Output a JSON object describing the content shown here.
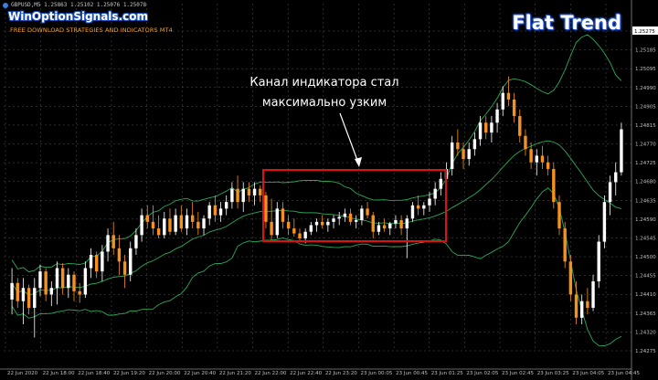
{
  "header": {
    "symbol_line": "GBPUSD,M5  1.25863 1.25102 1.25076 1.25078",
    "brand": "WinOptionSignals.com",
    "tagline": "FREE DOWNLOAD STRATEGIES AND INDICATORS MT4",
    "title": "Flat Trend"
  },
  "annotation": {
    "line1": "Канал индикатора стал",
    "line2": "максимально узким"
  },
  "colors": {
    "background": "#000000",
    "bull_candle": "#ffffff",
    "bear_candle": "#f5921e",
    "band": "#2aa85a",
    "grid": "#555555",
    "box": "#e01010",
    "axis_text": "#c0c0c0"
  },
  "chart_data": {
    "type": "candlestick",
    "title": "Flat Trend",
    "symbol": "GBPUSD,M5",
    "y_ticks": [
      "1.25275",
      "1.25185",
      "1.25095",
      "1.24990",
      "1.24905",
      "1.24815",
      "1.24770",
      "1.24725",
      "1.24680",
      "1.24635",
      "1.24590",
      "1.24545",
      "1.24500",
      "1.24455",
      "1.24410",
      "1.24365",
      "1.24320",
      "1.24275"
    ],
    "current_price_label": "1.25275",
    "x_ticks": [
      "22 Jun 2020",
      "22 Jun 18:00",
      "22 Jun 18:40",
      "22 Jun 19:20",
      "22 Jun 20:00",
      "22 Jun 20:40",
      "22 Jun 21:20",
      "22 Jun 22:00",
      "22 Jun 22:40",
      "22 Jun 23:20",
      "23 Jun 00:05",
      "23 Jun 00:45",
      "23 Jun 01:25",
      "23 Jun 02:05",
      "23 Jun 02:45",
      "23 Jun 03:25",
      "23 Jun 04:05",
      "23 Jun 04:45"
    ],
    "ohlc": [
      [
        1.24405,
        1.245,
        1.2436,
        1.24455
      ],
      [
        1.24455,
        1.2447,
        1.2438,
        1.244
      ],
      [
        1.244,
        1.2447,
        1.2433,
        1.2444
      ],
      [
        1.2444,
        1.2445,
        1.2436,
        1.2438
      ],
      [
        1.2438,
        1.2447,
        1.2429,
        1.2444
      ],
      [
        1.2444,
        1.2451,
        1.24415,
        1.2449
      ],
      [
        1.2449,
        1.245,
        1.244,
        1.2442
      ],
      [
        1.2442,
        1.2446,
        1.24385,
        1.2444
      ],
      [
        1.2444,
        1.2452,
        1.2439,
        1.245
      ],
      [
        1.245,
        1.24515,
        1.2442,
        1.2444
      ],
      [
        1.2444,
        1.245,
        1.2441,
        1.2448
      ],
      [
        1.2448,
        1.2449,
        1.244,
        1.2443
      ],
      [
        1.2443,
        1.24455,
        1.24395,
        1.2442
      ],
      [
        1.2442,
        1.2452,
        1.2441,
        1.245
      ],
      [
        1.245,
        1.2456,
        1.2447,
        1.2454
      ],
      [
        1.2454,
        1.2455,
        1.2447,
        1.2449
      ],
      [
        1.2449,
        1.2457,
        1.2446,
        1.2455
      ],
      [
        1.2455,
        1.2462,
        1.2452,
        1.246
      ],
      [
        1.246,
        1.2464,
        1.2454,
        1.2456
      ],
      [
        1.2456,
        1.246,
        1.2448,
        1.2452
      ],
      [
        1.2452,
        1.2454,
        1.2444,
        1.2448
      ],
      [
        1.2448,
        1.2458,
        1.2446,
        1.2456
      ],
      [
        1.2456,
        1.2462,
        1.2454,
        1.246
      ],
      [
        1.246,
        1.2468,
        1.2458,
        1.2466
      ],
      [
        1.2466,
        1.2469,
        1.2462,
        1.2464
      ],
      [
        1.2464,
        1.2469,
        1.246,
        1.2462
      ],
      [
        1.2462,
        1.2466,
        1.2459,
        1.246
      ],
      [
        1.246,
        1.2467,
        1.2459,
        1.2465
      ],
      [
        1.2465,
        1.2468,
        1.246,
        1.2461
      ],
      [
        1.2461,
        1.2468,
        1.246,
        1.2466
      ],
      [
        1.2466,
        1.2469,
        1.2461,
        1.2462
      ],
      [
        1.2462,
        1.2468,
        1.246,
        1.2466
      ],
      [
        1.2466,
        1.247,
        1.2462,
        1.2464
      ],
      [
        1.2464,
        1.2467,
        1.246,
        1.2462
      ],
      [
        1.2462,
        1.2466,
        1.246,
        1.2465
      ],
      [
        1.2465,
        1.247,
        1.2463,
        1.2469
      ],
      [
        1.2469,
        1.2472,
        1.2464,
        1.2466
      ],
      [
        1.2466,
        1.247,
        1.2464,
        1.2468
      ],
      [
        1.2468,
        1.2472,
        1.2466,
        1.247
      ],
      [
        1.247,
        1.2476,
        1.2468,
        1.2474
      ],
      [
        1.2474,
        1.2478,
        1.2468,
        1.247
      ],
      [
        1.247,
        1.2476,
        1.2467,
        1.2474
      ],
      [
        1.2474,
        1.2476,
        1.247,
        1.2472
      ],
      [
        1.2472,
        1.2476,
        1.2469,
        1.2474
      ],
      [
        1.2474,
        1.2475,
        1.247,
        1.2472
      ],
      [
        1.2472,
        1.2473,
        1.2462,
        1.2464
      ],
      [
        1.2464,
        1.2471,
        1.2458,
        1.246
      ],
      [
        1.246,
        1.247,
        1.2459,
        1.2468
      ],
      [
        1.2468,
        1.247,
        1.2462,
        1.2464
      ],
      [
        1.2464,
        1.2466,
        1.246,
        1.2462
      ],
      [
        1.2462,
        1.2465,
        1.24595,
        1.24605
      ],
      [
        1.24605,
        1.2462,
        1.2458,
        1.2459
      ],
      [
        1.2459,
        1.2462,
        1.24575,
        1.2461
      ],
      [
        1.2461,
        1.2464,
        1.246,
        1.2463
      ],
      [
        1.2463,
        1.2465,
        1.2461,
        1.2464
      ],
      [
        1.2464,
        1.2466,
        1.2462,
        1.2463
      ],
      [
        1.2463,
        1.2465,
        1.2461,
        1.2464
      ],
      [
        1.2464,
        1.2466,
        1.2462,
        1.2465
      ],
      [
        1.2465,
        1.2467,
        1.2463,
        1.24655
      ],
      [
        1.24655,
        1.2468,
        1.2464,
        1.24665
      ],
      [
        1.24665,
        1.2468,
        1.2463,
        1.2464
      ],
      [
        1.2464,
        1.2466,
        1.2462,
        1.24645
      ],
      [
        1.24645,
        1.2469,
        1.2463,
        1.2468
      ],
      [
        1.2468,
        1.247,
        1.2465,
        1.2466
      ],
      [
        1.2466,
        1.2467,
        1.2459,
        1.2461
      ],
      [
        1.2461,
        1.2464,
        1.246,
        1.2463
      ],
      [
        1.2463,
        1.2465,
        1.2461,
        1.2462
      ],
      [
        1.2462,
        1.2464,
        1.246,
        1.24635
      ],
      [
        1.24635,
        1.2466,
        1.2462,
        1.24645
      ],
      [
        1.24645,
        1.2466,
        1.246,
        1.2462
      ],
      [
        1.2462,
        1.2466,
        1.2453,
        1.2465
      ],
      [
        1.2465,
        1.247,
        1.2464,
        1.2469
      ],
      [
        1.2469,
        1.2472,
        1.2466,
        1.2468
      ],
      [
        1.2468,
        1.247,
        1.2466,
        1.2469
      ],
      [
        1.2469,
        1.2473,
        1.2467,
        1.2471
      ],
      [
        1.2471,
        1.2476,
        1.2469,
        1.2474
      ],
      [
        1.2474,
        1.2479,
        1.2472,
        1.2477
      ],
      [
        1.2477,
        1.2482,
        1.2475,
        1.248
      ],
      [
        1.248,
        1.249,
        1.2478,
        1.2488
      ],
      [
        1.2488,
        1.2492,
        1.2484,
        1.2486
      ],
      [
        1.2486,
        1.2488,
        1.248,
        1.2483
      ],
      [
        1.2483,
        1.2488,
        1.2481,
        1.2486
      ],
      [
        1.2486,
        1.2491,
        1.2484,
        1.2489
      ],
      [
        1.2489,
        1.2496,
        1.2487,
        1.2494
      ],
      [
        1.2494,
        1.2496,
        1.2489,
        1.2491
      ],
      [
        1.2491,
        1.2496,
        1.2488,
        1.2494
      ],
      [
        1.2494,
        1.25,
        1.2491,
        1.2498
      ],
      [
        1.2498,
        1.2505,
        1.2496,
        1.2503
      ],
      [
        1.2503,
        1.2508,
        1.2499,
        1.2501
      ],
      [
        1.2501,
        1.2503,
        1.2494,
        1.2496
      ],
      [
        1.2496,
        1.2498,
        1.2488,
        1.249
      ],
      [
        1.249,
        1.2492,
        1.2484,
        1.2486
      ],
      [
        1.2486,
        1.2488,
        1.248,
        1.2482
      ],
      [
        1.2482,
        1.2486,
        1.2478,
        1.2484
      ],
      [
        1.2484,
        1.2487,
        1.248,
        1.2482
      ],
      [
        1.2482,
        1.2484,
        1.2478,
        1.248
      ],
      [
        1.248,
        1.2482,
        1.2468,
        1.247
      ],
      [
        1.247,
        1.2472,
        1.246,
        1.2462
      ],
      [
        1.2462,
        1.2464,
        1.245,
        1.2452
      ],
      [
        1.2452,
        1.2454,
        1.244,
        1.2442
      ],
      [
        1.2442,
        1.2446,
        1.2433,
        1.2435
      ],
      [
        1.2435,
        1.2442,
        1.2433,
        1.244
      ],
      [
        1.244,
        1.2444,
        1.2436,
        1.2438
      ],
      [
        1.2438,
        1.2448,
        1.2437,
        1.2446
      ],
      [
        1.2446,
        1.246,
        1.2444,
        1.2458
      ],
      [
        1.2458,
        1.2472,
        1.2456,
        1.247
      ],
      [
        1.247,
        1.2478,
        1.2466,
        1.2476
      ],
      [
        1.2476,
        1.2482,
        1.2472,
        1.2479
      ],
      [
        1.2479,
        1.2494,
        1.2478,
        1.2492
      ]
    ]
  }
}
